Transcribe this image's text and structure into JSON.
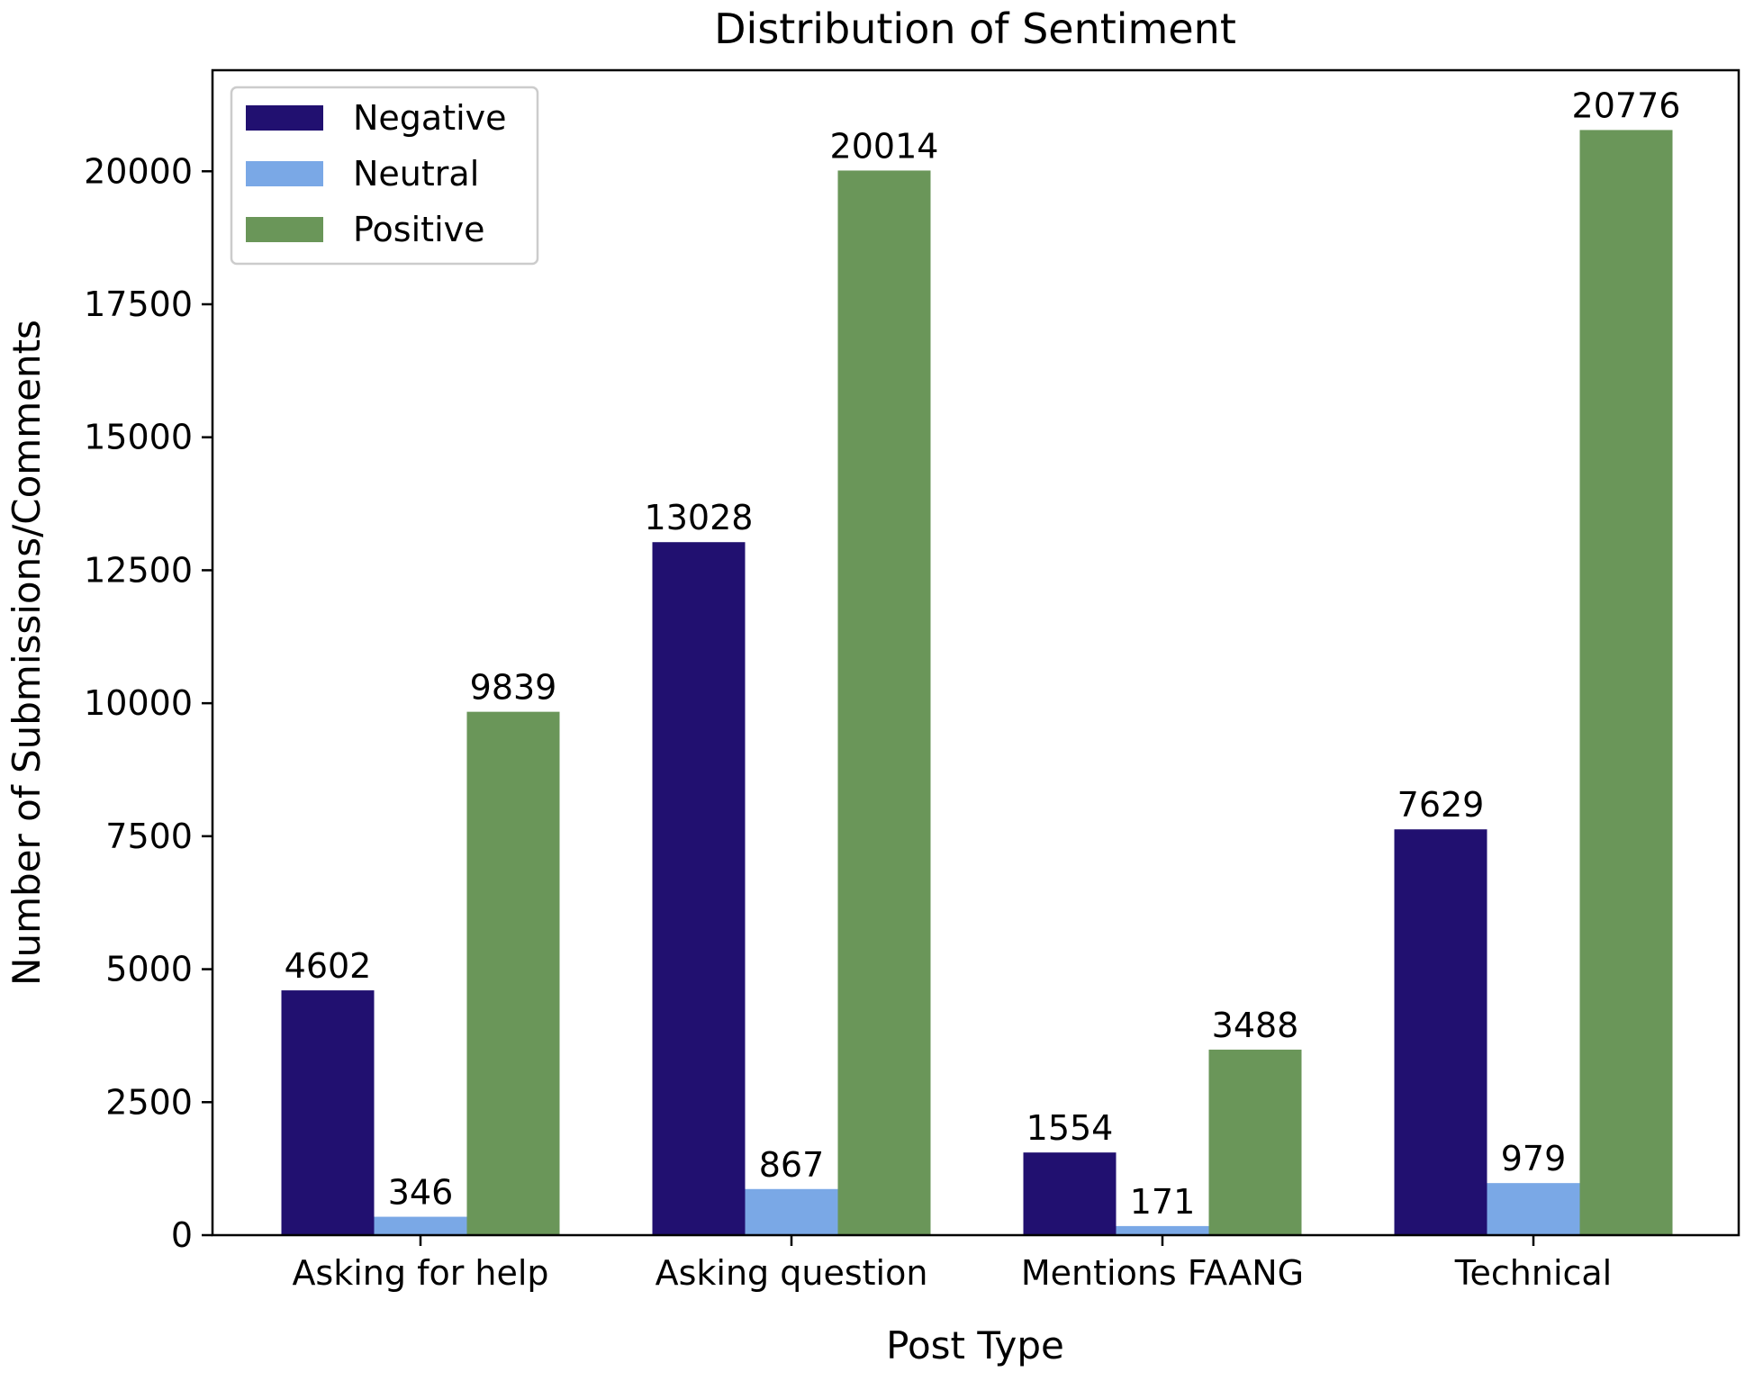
{
  "chart_data": {
    "type": "bar",
    "title": "Distribution of Sentiment",
    "xlabel": "Post Type",
    "ylabel": "Number of Submissions/Comments",
    "categories": [
      "Asking for help",
      "Asking question",
      "Mentions FAANG",
      "Technical"
    ],
    "series": [
      {
        "name": "Negative",
        "color": "#211070",
        "values": [
          4602,
          13028,
          1554,
          7629
        ]
      },
      {
        "name": "Neutral",
        "color": "#7aa8e6",
        "values": [
          346,
          867,
          171,
          979
        ]
      },
      {
        "name": "Positive",
        "color": "#6a9659",
        "values": [
          9839,
          20014,
          3488,
          20776
        ]
      }
    ],
    "ylim": [
      0,
      21900
    ],
    "yticks": [
      0,
      2500,
      5000,
      7500,
      10000,
      12500,
      15000,
      17500,
      20000
    ],
    "grid": false,
    "legend_position": "top-left",
    "data_labels": true
  }
}
